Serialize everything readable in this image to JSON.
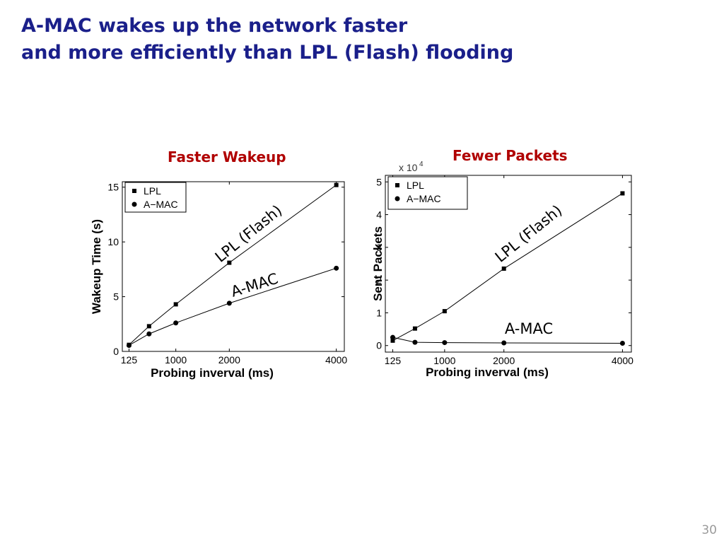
{
  "slide": {
    "title_line1": "A-MAC wakes up the network faster",
    "title_line2": "and more efficiently than LPL (Flash) flooding",
    "page_number": "30"
  },
  "colors": {
    "title": "#1a1f8a",
    "chart_title": "#b00000",
    "series": "#000000"
  },
  "chart_data": [
    {
      "type": "line",
      "title": "Faster Wakeup",
      "xlabel": "Probing inverval (ms)",
      "ylabel": "Wakeup Time (s)",
      "x_tick_labels": [
        "125",
        "1000",
        "2000",
        "4000"
      ],
      "x": [
        125,
        500,
        1000,
        2000,
        4000
      ],
      "xlim": [
        0,
        4150
      ],
      "ylim": [
        0,
        15.5
      ],
      "y_ticks": [
        0,
        5,
        10,
        15
      ],
      "legend": {
        "position": "top-left",
        "entries": [
          "LPL",
          "A−MAC"
        ]
      },
      "series": [
        {
          "name": "LPL",
          "marker": "square",
          "values": [
            0.6,
            2.3,
            4.3,
            8.1,
            15.2
          ]
        },
        {
          "name": "A−MAC",
          "marker": "circle",
          "values": [
            0.55,
            1.6,
            2.6,
            4.4,
            7.6
          ]
        }
      ],
      "annotations": [
        {
          "text": "LPL (Flash)",
          "series": "LPL"
        },
        {
          "text": "A-MAC",
          "series": "A−MAC"
        }
      ],
      "grid": false
    },
    {
      "type": "line",
      "title": "Fewer Packets",
      "xlabel": "Probing inverval (ms)",
      "ylabel": "Sent Packets",
      "y_multiplier": "x 10",
      "y_multiplier_exp": "4",
      "x_tick_labels": [
        "125",
        "1000",
        "2000",
        "4000"
      ],
      "x": [
        125,
        500,
        1000,
        2000,
        4000
      ],
      "xlim": [
        0,
        4150
      ],
      "ylim": [
        -0.2,
        5.2
      ],
      "y_ticks": [
        0,
        1,
        2,
        3,
        4,
        5
      ],
      "legend": {
        "position": "top-left",
        "entries": [
          "LPL",
          "A−MAC"
        ]
      },
      "series": [
        {
          "name": "LPL",
          "marker": "square",
          "values": [
            0.15,
            0.52,
            1.05,
            2.35,
            4.65
          ]
        },
        {
          "name": "A−MAC",
          "marker": "circle",
          "values": [
            0.25,
            0.1,
            0.09,
            0.08,
            0.07
          ]
        }
      ],
      "annotations": [
        {
          "text": "LPL (Flash)",
          "series": "LPL"
        },
        {
          "text": "A-MAC",
          "series": "A−MAC"
        }
      ],
      "grid": false
    }
  ]
}
